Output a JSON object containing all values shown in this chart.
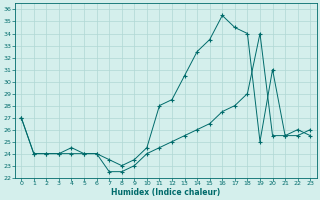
{
  "xlabel": "Humidex (Indice chaleur)",
  "bg_color": "#d4efec",
  "grid_color": "#b0d8d4",
  "line_color": "#006b6b",
  "xlim": [
    -0.5,
    23.5
  ],
  "ylim": [
    22,
    36.5
  ],
  "yticks": [
    22,
    23,
    24,
    25,
    26,
    27,
    28,
    29,
    30,
    31,
    32,
    33,
    34,
    35,
    36
  ],
  "xticks": [
    0,
    1,
    2,
    3,
    4,
    5,
    6,
    7,
    8,
    9,
    10,
    11,
    12,
    13,
    14,
    15,
    16,
    17,
    18,
    19,
    20,
    21,
    22,
    23
  ],
  "line1_x": [
    0,
    1,
    2,
    3,
    4,
    5,
    6,
    7,
    8,
    9,
    10,
    11,
    12,
    13,
    14,
    15,
    16,
    17,
    18,
    19,
    20,
    21,
    22,
    23
  ],
  "line1_y": [
    27.0,
    24.0,
    24.0,
    24.0,
    24.5,
    24.0,
    24.0,
    23.5,
    23.0,
    23.5,
    24.5,
    28.0,
    28.5,
    30.5,
    32.5,
    33.5,
    35.5,
    34.5,
    34.0,
    25.0,
    31.0,
    25.5,
    26.0,
    25.5
  ],
  "line2_x": [
    0,
    1,
    2,
    3,
    4,
    5,
    6,
    7,
    8,
    9,
    10,
    11,
    12,
    13,
    14,
    15,
    16,
    17,
    18,
    19,
    20,
    21,
    22,
    23
  ],
  "line2_y": [
    27.0,
    24.0,
    24.0,
    24.0,
    24.0,
    24.0,
    24.0,
    22.5,
    22.5,
    23.0,
    24.0,
    24.5,
    25.0,
    25.5,
    26.0,
    26.5,
    27.5,
    28.0,
    29.0,
    34.0,
    25.5,
    25.5,
    25.5,
    26.0
  ]
}
